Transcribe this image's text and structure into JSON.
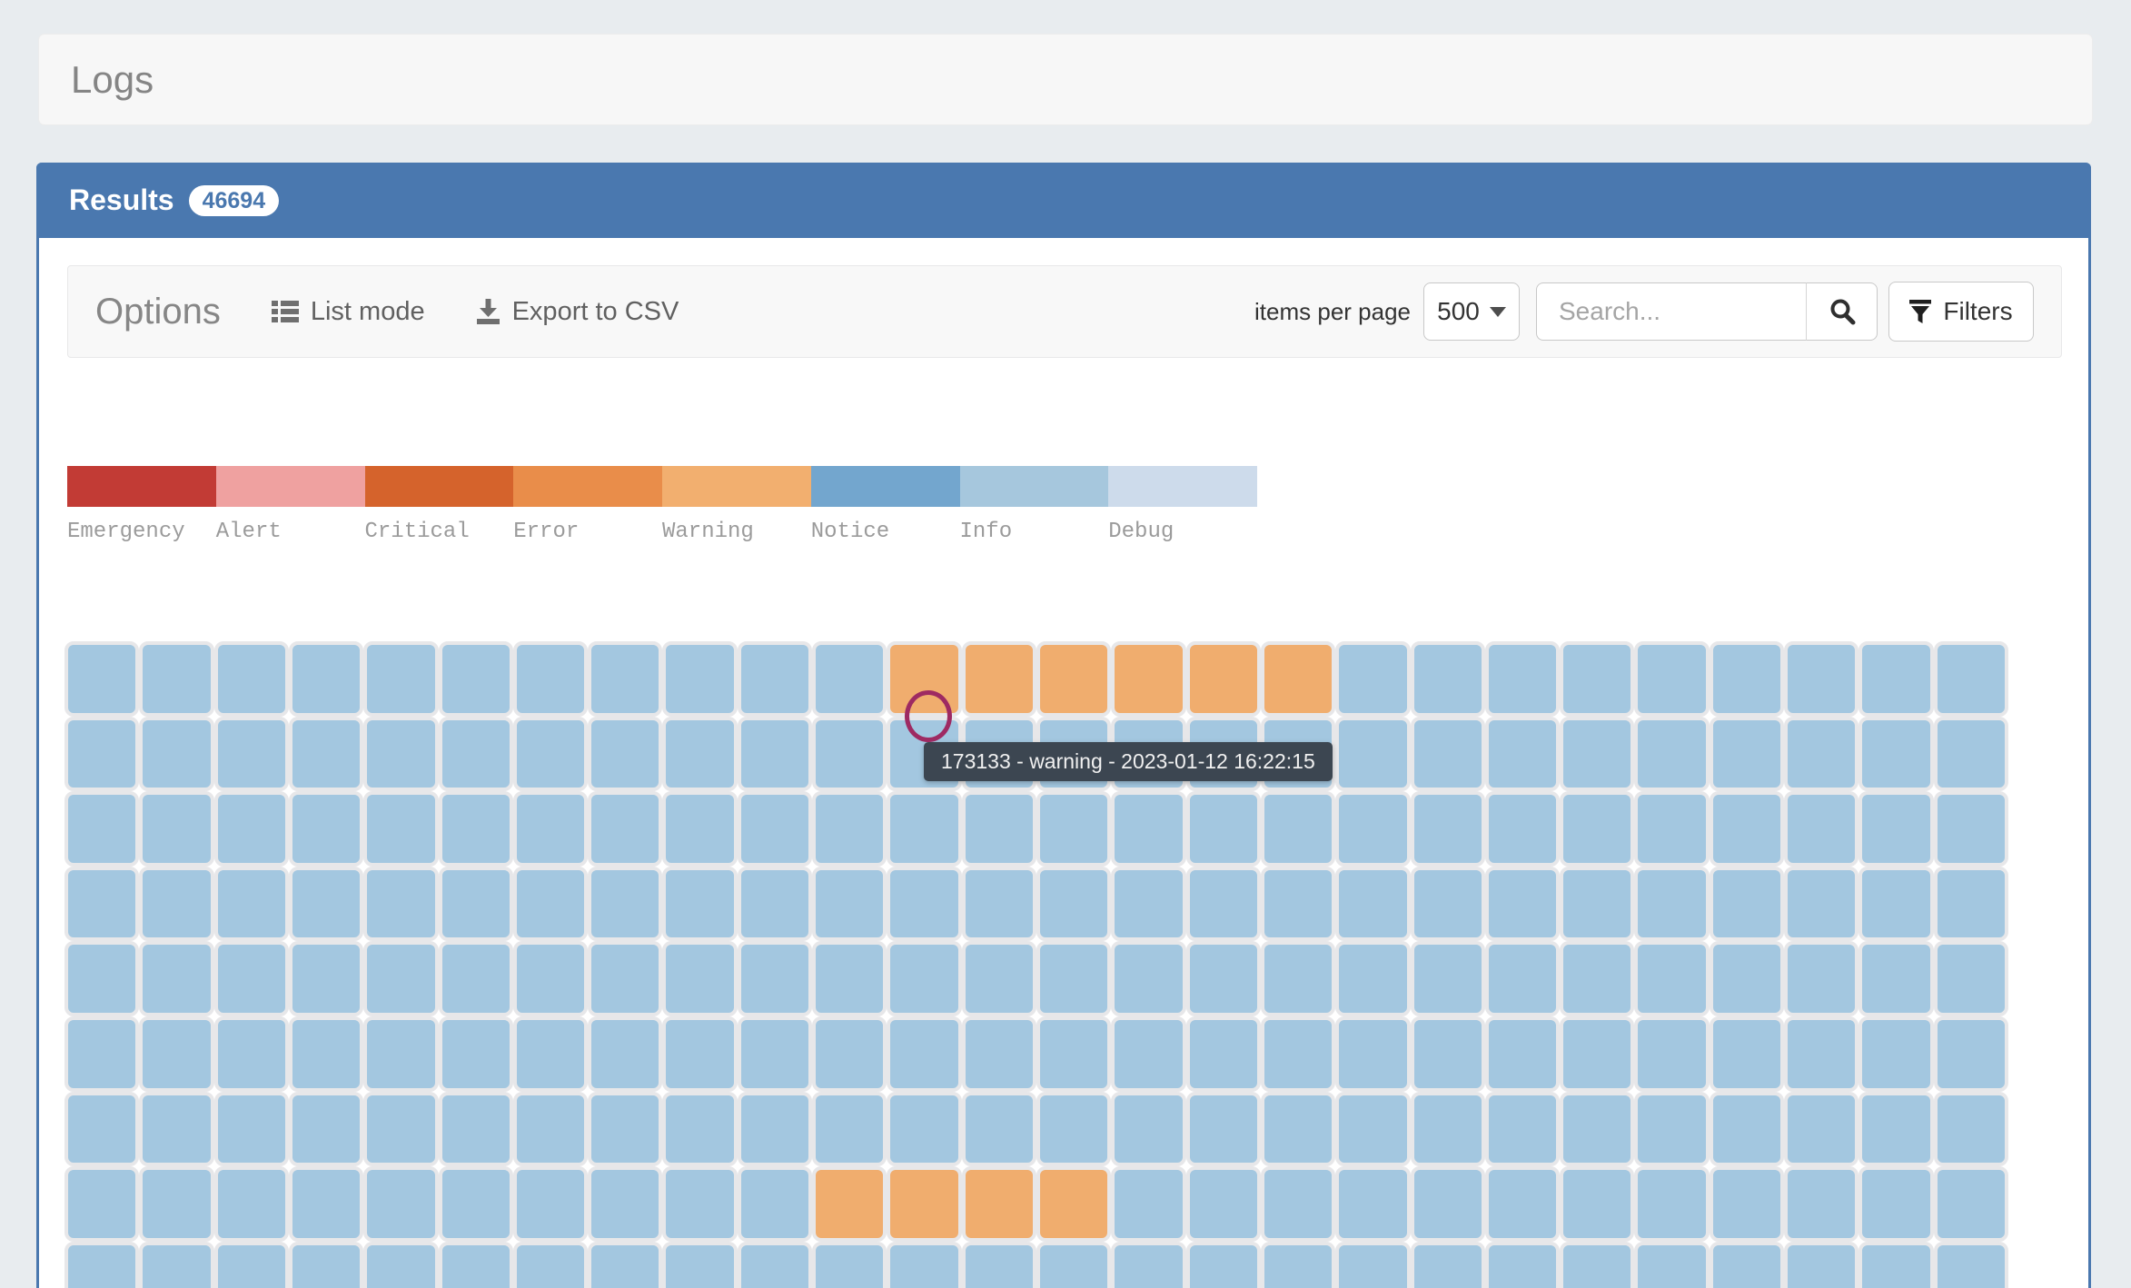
{
  "page": {
    "title": "Logs"
  },
  "results": {
    "title": "Results",
    "count": "46694"
  },
  "options": {
    "title": "Options",
    "list_mode_label": "List mode",
    "export_csv_label": "Export to CSV",
    "items_per_page_label": "items per page",
    "items_per_page_value": "500",
    "search_placeholder": "Search...",
    "filters_label": "Filters"
  },
  "legend": [
    {
      "label": "Emergency",
      "color": "#c23b35"
    },
    {
      "label": "Alert",
      "color": "#efa1a0"
    },
    {
      "label": "Critical",
      "color": "#d5632c"
    },
    {
      "label": "Error",
      "color": "#e98d4a"
    },
    {
      "label": "Warning",
      "color": "#f2af6f"
    },
    {
      "label": "Notice",
      "color": "#73a6ce"
    },
    {
      "label": "Info",
      "color": "#a6c7dd"
    },
    {
      "label": "Debug",
      "color": "#cddbeb"
    }
  ],
  "levels": {
    "info": "#a3c7e0",
    "warning": "#f0ad6e"
  },
  "grid": {
    "columns": 26,
    "rows": [
      [
        {
          "level": "info",
          "count": 11
        },
        {
          "level": "warning",
          "count": 6
        },
        {
          "level": "info",
          "count": 9
        }
      ],
      [
        {
          "level": "info",
          "count": 26
        }
      ],
      [
        {
          "level": "info",
          "count": 26
        }
      ],
      [
        {
          "level": "info",
          "count": 26
        }
      ],
      [
        {
          "level": "info",
          "count": 26
        }
      ],
      [
        {
          "level": "info",
          "count": 26
        }
      ],
      [
        {
          "level": "info",
          "count": 26
        }
      ],
      [
        {
          "level": "info",
          "count": 10
        },
        {
          "level": "warning",
          "count": 4
        },
        {
          "level": "info",
          "count": 12
        }
      ],
      [
        {
          "level": "info",
          "count": 26
        }
      ]
    ]
  },
  "tooltip": {
    "text": "173133 - warning - 2023-01-12 16:22:15"
  },
  "colors": {
    "header_blue": "#4a78af",
    "page_background": "#e8ecef",
    "cursor_ring": "#9e2a62",
    "tooltip_background": "#3c4651"
  }
}
